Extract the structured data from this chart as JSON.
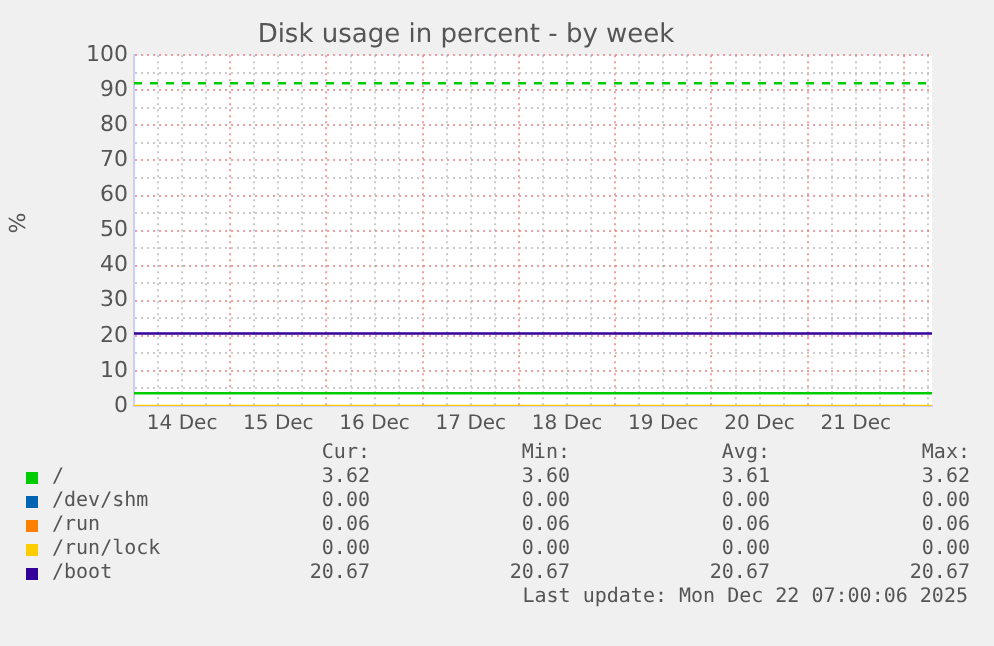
{
  "chart_data": {
    "type": "line",
    "title": "Disk usage in percent - by week",
    "ylabel": "%",
    "xlim": [
      "2025-12-14T00:00",
      "2025-12-22T07:00"
    ],
    "xticks": [
      {
        "value": "2025-12-14T06:00",
        "label": null
      },
      {
        "value": "2025-12-14T12:00",
        "label": "14 Dec"
      },
      {
        "value": "2025-12-14T18:00",
        "label": null
      },
      {
        "value": "2025-12-15T00:00",
        "label": null
      },
      {
        "value": "2025-12-15T06:00",
        "label": null
      },
      {
        "value": "2025-12-15T12:00",
        "label": "15 Dec"
      },
      {
        "value": "2025-12-15T18:00",
        "label": null
      },
      {
        "value": "2025-12-16T00:00",
        "label": null
      },
      {
        "value": "2025-12-16T06:00",
        "label": null
      },
      {
        "value": "2025-12-16T12:00",
        "label": "16 Dec"
      },
      {
        "value": "2025-12-16T18:00",
        "label": null
      },
      {
        "value": "2025-12-17T00:00",
        "label": null
      },
      {
        "value": "2025-12-17T06:00",
        "label": null
      },
      {
        "value": "2025-12-17T12:00",
        "label": "17 Dec"
      },
      {
        "value": "2025-12-17T18:00",
        "label": null
      },
      {
        "value": "2025-12-18T00:00",
        "label": null
      },
      {
        "value": "2025-12-18T06:00",
        "label": null
      },
      {
        "value": "2025-12-18T12:00",
        "label": "18 Dec"
      },
      {
        "value": "2025-12-18T18:00",
        "label": null
      },
      {
        "value": "2025-12-19T00:00",
        "label": null
      },
      {
        "value": "2025-12-19T06:00",
        "label": null
      },
      {
        "value": "2025-12-19T12:00",
        "label": "19 Dec"
      },
      {
        "value": "2025-12-19T18:00",
        "label": null
      },
      {
        "value": "2025-12-20T00:00",
        "label": null
      },
      {
        "value": "2025-12-20T06:00",
        "label": null
      },
      {
        "value": "2025-12-20T12:00",
        "label": "20 Dec"
      },
      {
        "value": "2025-12-20T18:00",
        "label": null
      },
      {
        "value": "2025-12-21T00:00",
        "label": null
      },
      {
        "value": "2025-12-21T06:00",
        "label": null
      },
      {
        "value": "2025-12-21T12:00",
        "label": "21 Dec"
      },
      {
        "value": "2025-12-21T18:00",
        "label": null
      },
      {
        "value": "2025-12-22T00:00",
        "label": null
      },
      {
        "value": "2025-12-22T06:00",
        "label": null
      }
    ],
    "ylim": [
      0,
      100
    ],
    "yticks": [
      0,
      {
        "value": 5,
        "label": null
      },
      10,
      {
        "value": 15,
        "label": null
      },
      20,
      {
        "value": 25,
        "label": null
      },
      30,
      {
        "value": 35,
        "label": null
      },
      40,
      {
        "value": 45,
        "label": null
      },
      50,
      {
        "value": 55,
        "label": null
      },
      60,
      {
        "value": 65,
        "label": null
      },
      70,
      {
        "value": 75,
        "label": null
      },
      80,
      {
        "value": 85,
        "label": null
      },
      90,
      {
        "value": 95,
        "label": null
      },
      100
    ],
    "grid": true,
    "legend": "bottom",
    "marker": "none",
    "line_style": "solid",
    "x": [
      "2025-12-14T00:00",
      "2025-12-22T07:00"
    ],
    "series": [
      {
        "name": "/",
        "color": "#00cc00",
        "values": [
          3.62,
          3.62
        ]
      },
      {
        "name": "/dev/shm",
        "color": "#0066b3",
        "values": [
          null,
          null
        ]
      },
      {
        "name": "/run",
        "color": "#ff8000",
        "values": [
          null,
          null
        ]
      },
      {
        "name": "/run/lock",
        "color": "#ffcc00",
        "values": [
          0,
          0
        ]
      },
      {
        "name": "/boot",
        "color": "#330099",
        "values": [
          20.67,
          20.67
        ]
      }
    ],
    "ref_lines": [
      {
        "axis": "y",
        "value": 92,
        "color": "#00cc00",
        "line_style": "dashed"
      }
    ],
    "annotations": [
      "Cur:",
      "Min:",
      "Avg:",
      "Max:",
      "3.62",
      "3.60",
      "3.61",
      "3.62",
      "0.00",
      "0.00",
      "0.00",
      "0.00",
      "0.06",
      "0.06",
      "0.06",
      "0.06",
      "0.00",
      "0.00",
      "0.00",
      "0.00",
      "20.67",
      "20.67",
      "20.67",
      "20.67",
      "Last update: Mon Dec 22 07:00:06 2025"
    ]
  }
}
